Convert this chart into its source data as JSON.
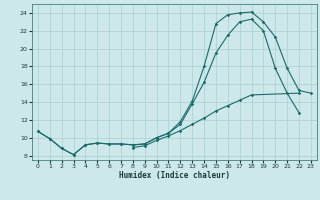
{
  "xlabel": "Humidex (Indice chaleur)",
  "bg_color": "#cce8ea",
  "grid_color": "#aacfcf",
  "line_color": "#1a6b6b",
  "xlim": [
    -0.5,
    23.5
  ],
  "ylim": [
    7.5,
    25.0
  ],
  "xticks": [
    0,
    1,
    2,
    3,
    4,
    5,
    6,
    7,
    8,
    9,
    10,
    11,
    12,
    13,
    14,
    15,
    16,
    17,
    18,
    19,
    20,
    21,
    22,
    23
  ],
  "yticks": [
    8,
    10,
    12,
    14,
    16,
    18,
    20,
    22,
    24
  ],
  "line1_x": [
    0,
    1,
    2,
    3,
    4,
    5,
    6,
    7,
    8,
    9,
    10,
    11,
    12,
    13,
    14,
    15,
    16,
    17,
    18,
    19,
    20,
    21,
    22,
    23
  ],
  "line1_y": [
    10.7,
    9.9,
    8.8,
    8.1,
    9.2,
    9.4,
    9.3,
    9.3,
    9.2,
    9.3,
    10.0,
    10.5,
    11.8,
    14.1,
    18.0,
    22.8,
    23.8,
    24.0,
    24.1,
    23.0,
    21.3,
    17.8,
    15.3,
    15.0
  ],
  "line2_x": [
    0,
    1,
    2,
    3,
    4,
    5,
    6,
    7,
    8,
    9,
    10,
    11,
    12,
    13,
    14,
    15,
    16,
    17,
    18,
    19,
    20,
    21,
    22,
    23
  ],
  "line2_y": [
    10.7,
    9.9,
    8.8,
    8.1,
    9.2,
    9.4,
    9.3,
    9.3,
    9.2,
    9.3,
    10.0,
    10.5,
    11.5,
    13.8,
    16.2,
    19.5,
    21.5,
    23.0,
    23.3,
    22.0,
    17.8,
    15.0,
    12.8,
    null
  ],
  "line3_x": [
    0,
    1,
    2,
    3,
    4,
    5,
    6,
    7,
    8,
    9,
    10,
    11,
    12,
    13,
    14,
    15,
    16,
    17,
    18,
    19,
    20,
    21,
    22,
    23
  ],
  "line3_y": [
    null,
    null,
    null,
    null,
    null,
    null,
    null,
    null,
    8.9,
    9.1,
    9.7,
    10.2,
    10.8,
    11.5,
    12.2,
    13.0,
    13.6,
    14.2,
    14.8,
    null,
    null,
    null,
    15.0,
    null
  ]
}
